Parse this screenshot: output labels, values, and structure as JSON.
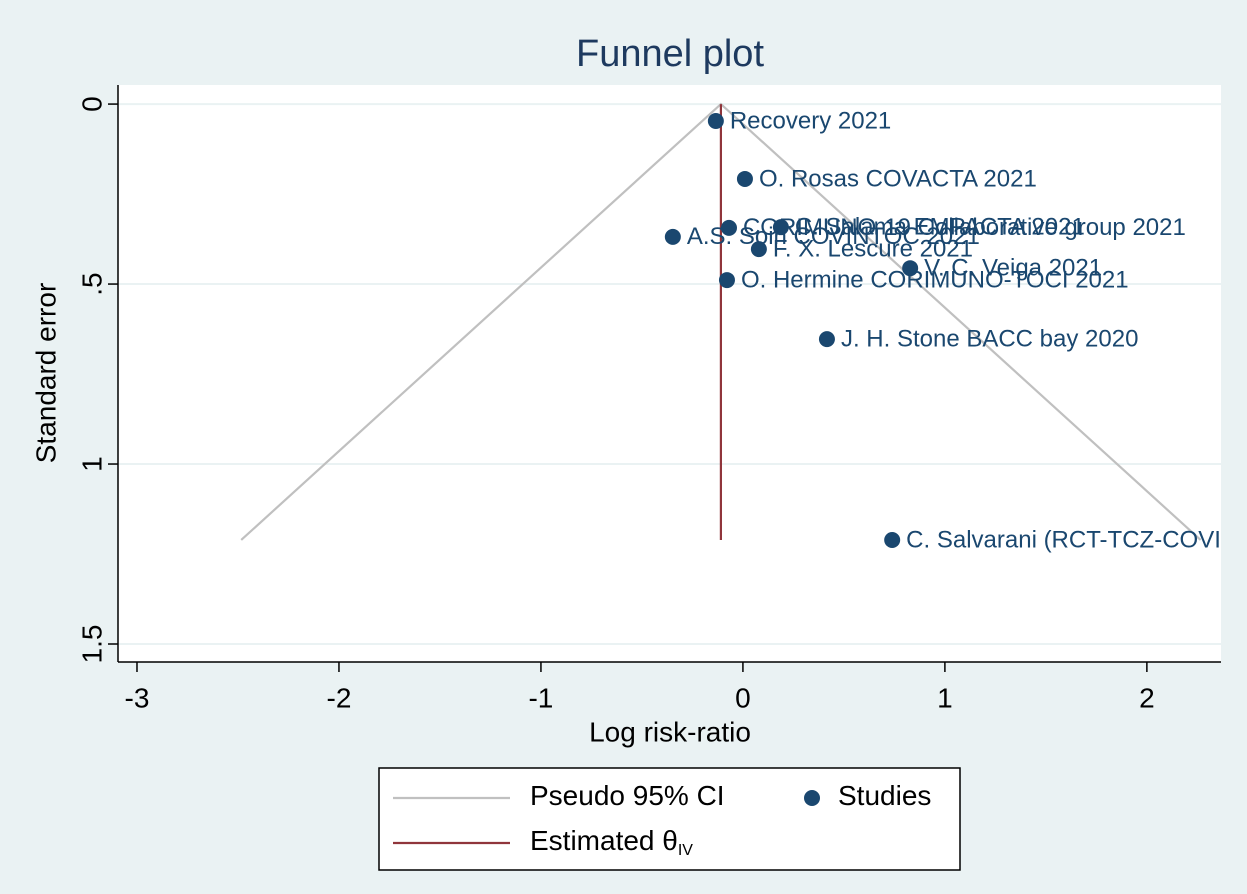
{
  "chart_data": {
    "type": "funnel",
    "title": "Funnel plot",
    "x_label": "Log risk-ratio",
    "y_label": "Standard error",
    "xlim": [
      -3.094,
      2.367
    ],
    "ylim": [
      -0.053,
      1.55
    ],
    "y_reversed": true,
    "xticks": [
      -3,
      -2,
      -1,
      0,
      1,
      2
    ],
    "yticks": [
      0,
      {
        "value": 0.5,
        "label": ".5"
      },
      1,
      1.5
    ],
    "grid": true,
    "series": [
      {
        "name": "Pseudo 95% CI",
        "type": "line",
        "color": "#c0c0c0",
        "x": [
          -2.484,
          -0.109,
          2.266
        ],
        "values": [
          1.211,
          0,
          1.211
        ]
      },
      {
        "name": "Estimated θ",
        "name_subscript": "IV",
        "type": "line",
        "color": "#90353b",
        "x": [
          -0.109,
          -0.109
        ],
        "values": [
          0,
          1.211
        ]
      },
      {
        "name": "Studies",
        "type": "scatter",
        "color": "#1a476f",
        "x": [
          -0.134,
          0.01,
          -0.069,
          0.188,
          -0.347,
          0.079,
          0.828,
          -0.079,
          0.416,
          0.739
        ],
        "values": [
          0.047,
          0.208,
          0.344,
          0.342,
          0.369,
          0.403,
          0.456,
          0.489,
          0.653,
          1.211
        ],
        "labels": [
          "Recovery 2021",
          "O. Rosas COVACTA 2021",
          "CORIMUNO-19 Collaborative group 2021",
          "C. Salama EMPACTA 2021",
          "A.S. Soin COVINTOC 2021",
          "F. X. Lescure 2021",
          "V. C. Veiga 2021",
          "O. Hermine CORIMUNO-TOCI 2021",
          "J. H. Stone BACC bay 2020",
          "C. Salvarani (RCT-TCZ-COVI"
        ]
      }
    ]
  }
}
